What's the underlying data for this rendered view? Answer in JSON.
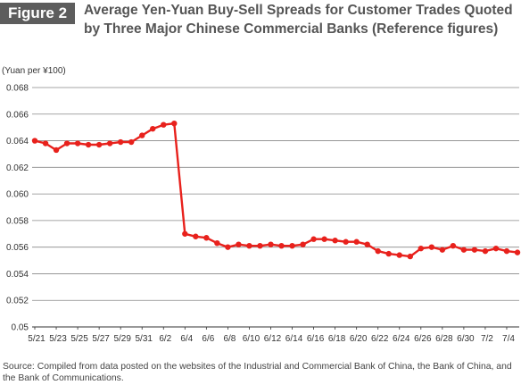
{
  "figure_label": "Figure 2",
  "title": "Average Yen-Yuan Buy-Sell Spreads for Customer Trades Quoted by Three Major Chinese Commercial Banks (Reference figures)",
  "source": "Source: Compiled from data posted on the websites of the Industrial and Commercial Bank of China, the Bank of China, and the Bank of Communications.",
  "colors": {
    "line": "#e8211c",
    "grid": "#888888",
    "axis": "#333333",
    "badge": "#5d5d5d"
  },
  "chart_data": {
    "type": "line",
    "title": "Average Yen-Yuan Buy-Sell Spreads for Customer Trades Quoted by Three Major Chinese Commercial Banks (Reference figures)",
    "ylabel": "(Yuan per ¥100)",
    "xlabel": "",
    "ylim": [
      0.05,
      0.068
    ],
    "yticks": [
      "0.05",
      "0.052",
      "0.054",
      "0.056",
      "0.058",
      "0.060",
      "0.062",
      "0.064",
      "0.066",
      "0.068"
    ],
    "xtick_labels": [
      "5/21",
      "5/23",
      "5/25",
      "5/27",
      "5/29",
      "5/31",
      "6/2",
      "6/4",
      "6/6",
      "6/8",
      "6/10",
      "6/12",
      "6/14",
      "6/16",
      "6/18",
      "6/20",
      "6/22",
      "6/24",
      "6/26",
      "6/28",
      "6/30",
      "7/2",
      "7/4"
    ],
    "grid": "horizontal",
    "legend": "none",
    "series": [
      {
        "name": "",
        "x": [
          "5/21",
          "5/22",
          "5/23",
          "5/24",
          "5/25",
          "5/26",
          "5/27",
          "5/28",
          "5/29",
          "5/30",
          "5/31",
          "6/1",
          "6/2",
          "6/3",
          "6/4",
          "6/5",
          "6/6",
          "6/7",
          "6/8",
          "6/9",
          "6/10",
          "6/11",
          "6/12",
          "6/13",
          "6/14",
          "6/15",
          "6/16",
          "6/17",
          "6/18",
          "6/19",
          "6/20",
          "6/21",
          "6/22",
          "6/23",
          "6/24",
          "6/25",
          "6/26",
          "6/27",
          "6/28",
          "6/29",
          "6/30",
          "7/1",
          "7/2",
          "7/3",
          "7/4",
          "7/5"
        ],
        "values": [
          0.064,
          0.0638,
          0.0633,
          0.0638,
          0.0638,
          0.0637,
          0.0637,
          0.0638,
          0.0639,
          0.0639,
          0.0644,
          0.0649,
          0.0652,
          0.0653,
          0.057,
          0.0568,
          0.0567,
          0.0563,
          0.056,
          0.0562,
          0.0561,
          0.0561,
          0.0562,
          0.0561,
          0.0561,
          0.0562,
          0.0566,
          0.0566,
          0.0565,
          0.0564,
          0.0564,
          0.0562,
          0.0557,
          0.0555,
          0.0554,
          0.0553,
          0.0559,
          0.056,
          0.0558,
          0.0561,
          0.0558,
          0.0558,
          0.0557,
          0.0559,
          0.0557,
          0.0556
        ]
      }
    ]
  }
}
